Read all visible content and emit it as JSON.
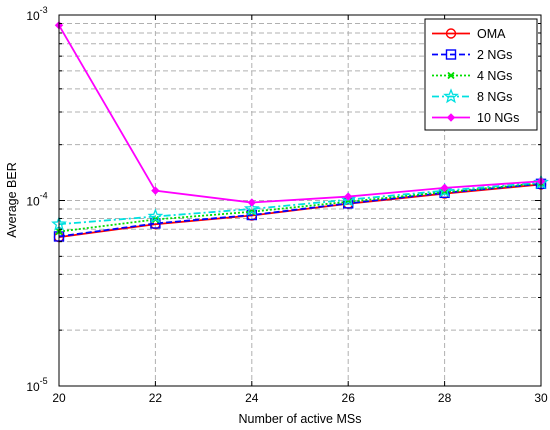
{
  "chart_data": {
    "type": "line",
    "xlabel": "Number of active MSs",
    "ylabel": "Average BER",
    "xlim": [
      20,
      30
    ],
    "ylim": [
      1e-05,
      0.001
    ],
    "yscale": "log",
    "grid": true,
    "legend_position": "top-right",
    "x": [
      20,
      22,
      24,
      26,
      28,
      30
    ],
    "x_ticks": [
      "20",
      "22",
      "24",
      "26",
      "28",
      "30"
    ],
    "y_ticks": [
      {
        "value": 0.001,
        "base": "10",
        "exp": "-3"
      },
      {
        "value": 0.0001,
        "base": "10",
        "exp": "-4"
      },
      {
        "value": 1e-05,
        "base": "10",
        "exp": "-5"
      }
    ],
    "series": [
      {
        "name": "OMA",
        "color": "#ff0000",
        "dash": "solid",
        "marker": "circle",
        "values": [
          6.35e-05,
          7.45e-05,
          8.3e-05,
          9.6e-05,
          0.000109,
          0.000122
        ]
      },
      {
        "name": "2 NGs",
        "color": "#0000ff",
        "dash": "dashed",
        "marker": "square",
        "values": [
          6.4e-05,
          7.52e-05,
          8.35e-05,
          9.65e-05,
          0.00011,
          0.000123
        ]
      },
      {
        "name": "4 NGs",
        "color": "#00dd00",
        "dash": "dotted",
        "marker": "x",
        "values": [
          6.8e-05,
          7.9e-05,
          8.7e-05,
          9.85e-05,
          0.000111,
          0.000124
        ]
      },
      {
        "name": "8 NGs",
        "color": "#00e0e0",
        "dash": "dashdot",
        "marker": "star",
        "values": [
          7.45e-05,
          8.2e-05,
          9e-05,
          0.000101,
          0.000113,
          0.000125
        ]
      },
      {
        "name": "10 NGs",
        "color": "#ff00ff",
        "dash": "solid",
        "marker": "diamond",
        "values": [
          0.00088,
          0.000113,
          9.75e-05,
          0.000105,
          0.000117,
          0.000127
        ]
      }
    ]
  }
}
